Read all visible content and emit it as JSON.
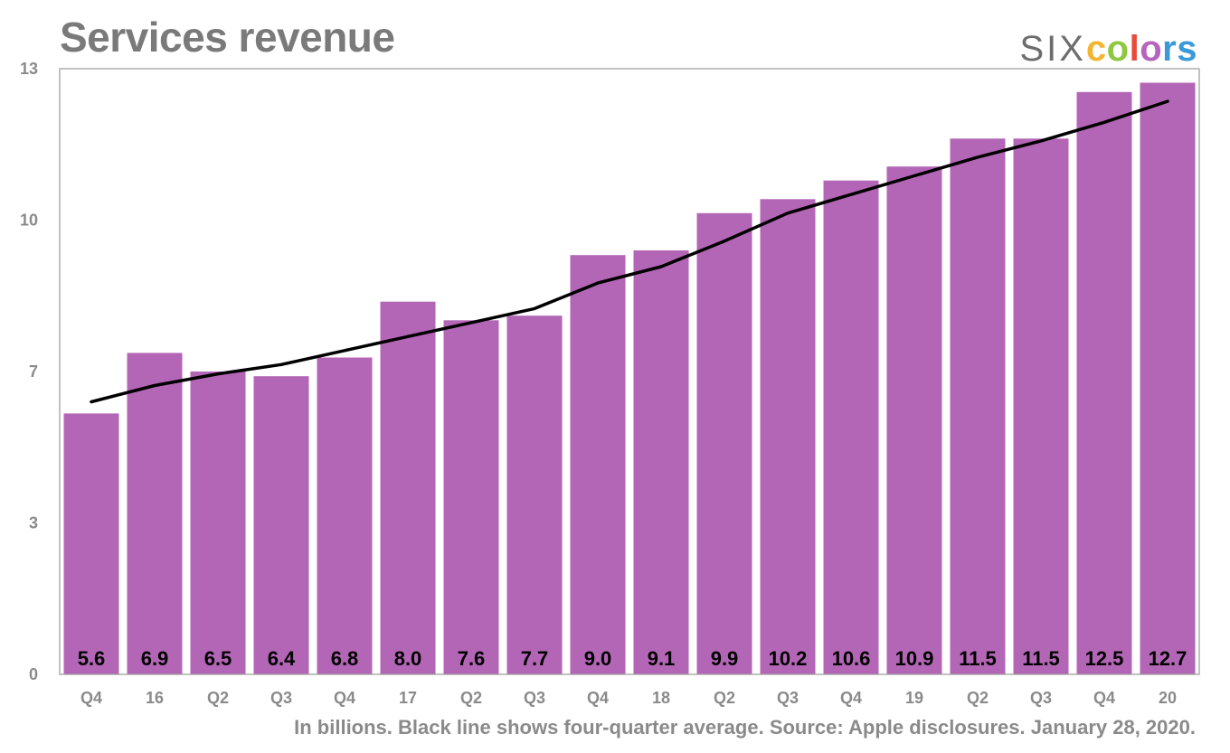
{
  "title": "Services revenue",
  "logo": {
    "six": "SIX",
    "colors_letters": [
      "c",
      "o",
      "l",
      "o",
      "r",
      "s"
    ],
    "letter_colors": [
      "#f2b631",
      "#8fc840",
      "#e84b3c",
      "#b565bb",
      "#3a9ad9",
      "#3a9ad9"
    ]
  },
  "footnote": "In billions. Black line shows four-quarter average. Source: Apple disclosures. January 28, 2020.",
  "colors": {
    "bar": "#b466b6",
    "line": "#000000",
    "frame": "#9a9a9a"
  },
  "chart_data": {
    "type": "bar",
    "categories": [
      "Q4",
      "16",
      "Q2",
      "Q3",
      "Q4",
      "17",
      "Q2",
      "Q3",
      "Q4",
      "18",
      "Q2",
      "Q3",
      "Q4",
      "19",
      "Q2",
      "Q3",
      "Q4",
      "20"
    ],
    "values": [
      5.6,
      6.9,
      6.5,
      6.4,
      6.8,
      8.0,
      7.6,
      7.7,
      9.0,
      9.1,
      9.9,
      10.2,
      10.6,
      10.9,
      11.5,
      11.5,
      12.5,
      12.7
    ],
    "data_labels": [
      "5.6",
      "6.9",
      "6.5",
      "6.4",
      "6.8",
      "8.0",
      "7.6",
      "7.7",
      "9.0",
      "9.1",
      "9.9",
      "10.2",
      "10.6",
      "10.9",
      "11.5",
      "11.5",
      "12.5",
      "12.7"
    ],
    "series": [
      {
        "values": [
          5.6,
          6.9,
          6.5,
          6.4,
          6.8,
          8.0,
          7.6,
          7.7,
          9.0,
          9.1,
          9.9,
          10.2,
          10.6,
          10.9,
          11.5,
          11.5,
          12.5,
          12.7
        ]
      },
      {
        "values": [
          5.85,
          6.2,
          6.45,
          6.65,
          6.95,
          7.25,
          7.55,
          7.85,
          8.4,
          8.75,
          9.3,
          9.9,
          10.3,
          10.7,
          11.1,
          11.45,
          11.85,
          12.3
        ]
      }
    ],
    "yticks": [
      "0",
      "3",
      "7",
      "10",
      "13"
    ],
    "ytick_values": [
      0,
      3.25,
      6.5,
      9.75,
      13
    ],
    "ylim": [
      0,
      13
    ],
    "grid": false
  }
}
